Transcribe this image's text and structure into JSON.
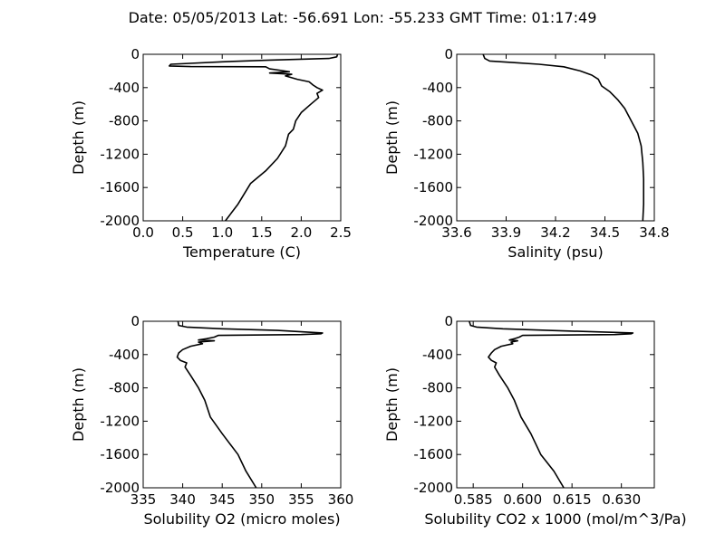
{
  "title": "Date: 05/05/2013  Lat:  -56.691 Lon:  -55.233  GMT Time: 01:17:49",
  "chart_data": [
    {
      "type": "line",
      "xlabel": "Temperature (C)",
      "ylabel": "Depth (m)",
      "xlim": [
        0.0,
        2.5
      ],
      "ylim": [
        -2000,
        0
      ],
      "xticks": [
        "0.0",
        "0.5",
        "1.0",
        "1.5",
        "2.0",
        "2.5"
      ],
      "yticks": [
        "0",
        "-400",
        "-800",
        "-1200",
        "-1600",
        "-2000"
      ],
      "x": [
        2.46,
        2.45,
        2.35,
        1.6,
        1.0,
        0.35,
        0.33,
        0.6,
        1.55,
        1.6,
        1.72,
        1.85,
        1.6,
        1.88,
        1.8,
        1.95,
        2.1,
        2.15,
        2.2,
        2.27,
        2.2,
        2.22,
        2.12,
        2.0,
        1.93,
        1.9,
        1.84,
        1.8,
        1.7,
        1.55,
        1.36,
        1.2,
        1.04
      ],
      "y": [
        0,
        -30,
        -50,
        -70,
        -90,
        -120,
        -140,
        -148,
        -150,
        -175,
        -190,
        -210,
        -225,
        -240,
        -260,
        -300,
        -330,
        -370,
        -400,
        -430,
        -470,
        -520,
        -600,
        -700,
        -800,
        -900,
        -960,
        -1100,
        -1250,
        -1400,
        -1550,
        -1800,
        -2000
      ]
    },
    {
      "type": "line",
      "xlabel": "Salinity (psu)",
      "ylabel": "Depth (m)",
      "xlim": [
        33.6,
        34.8
      ],
      "ylim": [
        -2000,
        0
      ],
      "xticks": [
        "33.6",
        "33.9",
        "34.2",
        "34.5",
        "34.8"
      ],
      "yticks": [
        "0",
        "-400",
        "-800",
        "-1200",
        "-1600",
        "-2000"
      ],
      "x": [
        33.76,
        33.77,
        33.8,
        33.95,
        34.1,
        34.25,
        34.35,
        34.42,
        34.46,
        34.48,
        34.53,
        34.58,
        34.62,
        34.66,
        34.7,
        34.72,
        34.73,
        34.735,
        34.735,
        34.73
      ],
      "y": [
        0,
        -50,
        -80,
        -100,
        -120,
        -150,
        -200,
        -250,
        -300,
        -380,
        -450,
        -550,
        -650,
        -800,
        -950,
        -1100,
        -1300,
        -1500,
        -1800,
        -2000
      ]
    },
    {
      "type": "line",
      "xlabel": "Solubility O2 (micro moles)",
      "ylabel": "Depth (m)",
      "xlim": [
        335,
        360
      ],
      "ylim": [
        -2000,
        0
      ],
      "xticks": [
        "335",
        "340",
        "345",
        "350",
        "355",
        "360"
      ],
      "yticks": [
        "0",
        "-400",
        "-800",
        "-1200",
        "-1600",
        "-2000"
      ],
      "x": [
        339.4,
        339.5,
        340.5,
        345,
        352,
        357.7,
        357.5,
        355,
        344.5,
        344,
        343,
        342,
        344,
        342,
        342.5,
        341,
        340,
        339.5,
        339.3,
        339.7,
        340.5,
        340.3,
        341,
        342,
        342.8,
        343.5,
        345,
        347,
        348,
        349.3
      ],
      "y": [
        0,
        -50,
        -70,
        -90,
        -110,
        -140,
        -150,
        -160,
        -170,
        -190,
        -210,
        -225,
        -235,
        -250,
        -270,
        -300,
        -340,
        -380,
        -430,
        -470,
        -500,
        -550,
        -650,
        -800,
        -950,
        -1150,
        -1350,
        -1600,
        -1800,
        -2000
      ]
    },
    {
      "type": "line",
      "xlabel": "Solubility CO2 x 1000 (mol/m^3/Pa)",
      "ylabel": "Depth (m)",
      "xlim": [
        0.58,
        0.64
      ],
      "ylim": [
        -2000,
        0
      ],
      "xticks": [
        "0.585",
        "0.600",
        "0.615",
        "0.630"
      ],
      "yticks": [
        "0",
        "-400",
        "-800",
        "-1200",
        "-1600",
        "-2000"
      ],
      "x": [
        0.5838,
        0.5842,
        0.586,
        0.594,
        0.608,
        0.6335,
        0.633,
        0.628,
        0.6,
        0.599,
        0.5975,
        0.596,
        0.5985,
        0.5965,
        0.597,
        0.5935,
        0.5915,
        0.5905,
        0.5896,
        0.5905,
        0.592,
        0.5915,
        0.593,
        0.5955,
        0.5975,
        0.5995,
        0.6025,
        0.6055,
        0.6095,
        0.6125
      ],
      "y": [
        0,
        -50,
        -70,
        -90,
        -110,
        -140,
        -150,
        -160,
        -170,
        -190,
        -210,
        -225,
        -235,
        -250,
        -270,
        -300,
        -340,
        -380,
        -430,
        -470,
        -500,
        -550,
        -650,
        -800,
        -950,
        -1150,
        -1350,
        -1600,
        -1800,
        -2000
      ]
    }
  ]
}
